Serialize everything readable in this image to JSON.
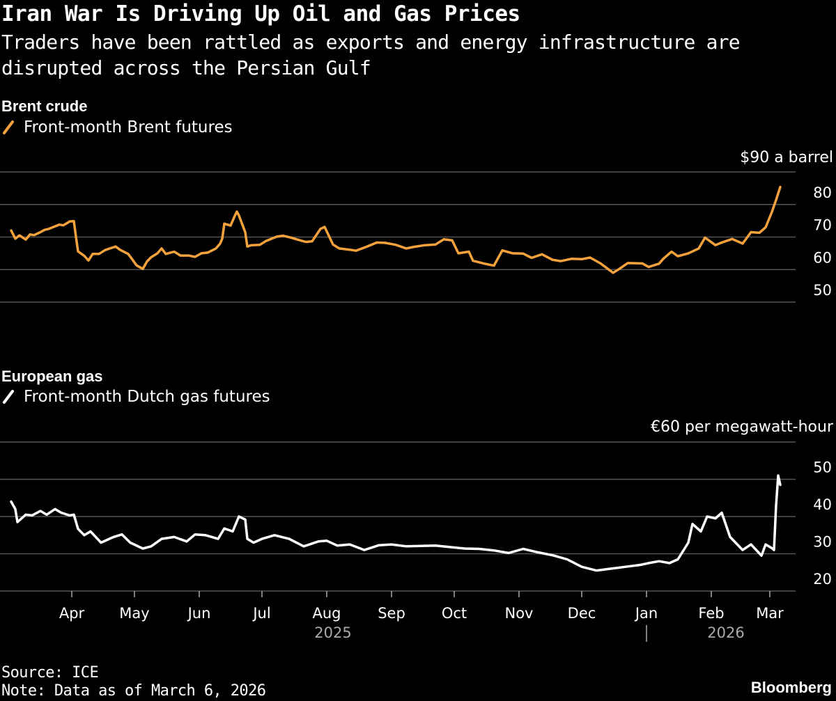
{
  "title": "Iran War Is Driving Up Oil and Gas Prices",
  "subtitle": "Traders have been rattled as exports and energy infrastructure are disrupted across the Persian Gulf",
  "source": "Source: ICE",
  "note": "Note: Data as of March 6, 2026",
  "brand": "Bloomberg",
  "colors": {
    "background": "#000000",
    "brent": "#f5a23d",
    "gas": "#ffffff",
    "grid": "#555555"
  },
  "chart_data": [
    {
      "type": "line",
      "title": "Brent crude",
      "unit_label": "$90 a barrel",
      "legend": "Front-month Brent futures",
      "ylim": [
        50,
        90
      ],
      "yticks": [
        "50",
        "60",
        "70",
        "80"
      ],
      "x_ticks": [
        "Apr",
        "May",
        "Jun",
        "Jul",
        "Aug",
        "Sep",
        "Oct",
        "Nov",
        "Dec",
        "Jan",
        "Feb",
        "Mar"
      ],
      "year_labels": [
        "2025",
        "2026"
      ],
      "series": [
        {
          "name": "Front-month Brent futures",
          "x": [
            "2025-03-03",
            "2025-03-05",
            "2025-03-07",
            "2025-03-10",
            "2025-03-12",
            "2025-03-14",
            "2025-03-17",
            "2025-03-19",
            "2025-03-21",
            "2025-03-24",
            "2025-03-26",
            "2025-03-28",
            "2025-03-31",
            "2025-04-02",
            "2025-04-03",
            "2025-04-04",
            "2025-04-07",
            "2025-04-09",
            "2025-04-11",
            "2025-04-14",
            "2025-04-17",
            "2025-04-22",
            "2025-04-24",
            "2025-04-28",
            "2025-04-30",
            "2025-05-02",
            "2025-05-05",
            "2025-05-07",
            "2025-05-09",
            "2025-05-12",
            "2025-05-14",
            "2025-05-16",
            "2025-05-20",
            "2025-05-23",
            "2025-05-27",
            "2025-05-30",
            "2025-06-02",
            "2025-06-05",
            "2025-06-09",
            "2025-06-11",
            "2025-06-12",
            "2025-06-13",
            "2025-06-16",
            "2025-06-18",
            "2025-06-19",
            "2025-06-20",
            "2025-06-23",
            "2025-06-24",
            "2025-06-26",
            "2025-06-30",
            "2025-07-03",
            "2025-07-08",
            "2025-07-11",
            "2025-07-15",
            "2025-07-18",
            "2025-07-22",
            "2025-07-25",
            "2025-07-29",
            "2025-07-31",
            "2025-08-04",
            "2025-08-07",
            "2025-08-12",
            "2025-08-15",
            "2025-08-20",
            "2025-08-25",
            "2025-08-29",
            "2025-09-03",
            "2025-09-08",
            "2025-09-12",
            "2025-09-17",
            "2025-09-22",
            "2025-09-26",
            "2025-09-30",
            "2025-10-03",
            "2025-10-08",
            "2025-10-10",
            "2025-10-15",
            "2025-10-20",
            "2025-10-24",
            "2025-10-29",
            "2025-11-03",
            "2025-11-07",
            "2025-11-12",
            "2025-11-17",
            "2025-11-21",
            "2025-11-26",
            "2025-12-01",
            "2025-12-05",
            "2025-12-10",
            "2025-12-16",
            "2025-12-19",
            "2025-12-23",
            "2025-12-30",
            "2026-01-02",
            "2026-01-07",
            "2026-01-09",
            "2026-01-13",
            "2026-01-16",
            "2026-01-21",
            "2026-01-26",
            "2026-01-29",
            "2026-02-03",
            "2026-02-06",
            "2026-02-11",
            "2026-02-16",
            "2026-02-20",
            "2026-02-24",
            "2026-02-27",
            "2026-03-02",
            "2026-03-04",
            "2026-03-06"
          ],
          "y": [
            72.0,
            69.5,
            70.5,
            69.2,
            70.8,
            70.6,
            71.5,
            72.2,
            72.5,
            73.3,
            73.8,
            73.6,
            74.8,
            74.9,
            70.1,
            65.6,
            64.2,
            62.8,
            64.8,
            64.8,
            66.0,
            67.1,
            66.1,
            64.8,
            63.1,
            61.3,
            60.2,
            62.5,
            63.8,
            65.0,
            66.5,
            64.8,
            65.5,
            64.3,
            64.3,
            63.9,
            65.0,
            65.2,
            66.5,
            68.0,
            69.5,
            74.1,
            73.5,
            76.5,
            77.8,
            76.6,
            71.5,
            67.1,
            67.5,
            67.6,
            68.8,
            70.1,
            70.4,
            69.8,
            69.2,
            68.5,
            68.7,
            72.5,
            73.1,
            67.7,
            66.5,
            66.1,
            65.8,
            67.0,
            68.3,
            68.2,
            67.6,
            66.5,
            67.0,
            67.5,
            67.7,
            69.3,
            69.0,
            65.0,
            65.5,
            62.7,
            61.9,
            61.2,
            65.9,
            65.0,
            64.9,
            63.6,
            64.7,
            63.0,
            62.6,
            63.3,
            63.2,
            63.7,
            61.9,
            59.0,
            60.2,
            62.0,
            61.9,
            60.8,
            61.8,
            63.3,
            65.5,
            64.1,
            65.0,
            66.5,
            69.8,
            67.5,
            68.3,
            69.4,
            68.0,
            71.5,
            71.3,
            73.0,
            77.7,
            81.4,
            85.4
          ]
        }
      ]
    },
    {
      "type": "line",
      "title": "European gas",
      "unit_label": "€60 per megawatt-hour",
      "legend": "Front-month Dutch gas futures",
      "ylim": [
        20,
        60
      ],
      "yticks": [
        "20",
        "30",
        "40",
        "50"
      ],
      "x_ticks": [
        "Apr",
        "May",
        "Jun",
        "Jul",
        "Aug",
        "Sep",
        "Oct",
        "Nov",
        "Dec",
        "Jan",
        "Feb",
        "Mar"
      ],
      "year_labels": [
        "2025",
        "2026"
      ],
      "series": [
        {
          "name": "Front-month Dutch gas futures",
          "x": [
            "2025-03-03",
            "2025-03-05",
            "2025-03-06",
            "2025-03-10",
            "2025-03-13",
            "2025-03-17",
            "2025-03-20",
            "2025-03-24",
            "2025-03-27",
            "2025-03-31",
            "2025-04-02",
            "2025-04-04",
            "2025-04-07",
            "2025-04-10",
            "2025-04-15",
            "2025-04-21",
            "2025-04-25",
            "2025-04-29",
            "2025-05-05",
            "2025-05-09",
            "2025-05-14",
            "2025-05-20",
            "2025-05-26",
            "2025-05-30",
            "2025-06-04",
            "2025-06-10",
            "2025-06-13",
            "2025-06-17",
            "2025-06-19",
            "2025-06-20",
            "2025-06-23",
            "2025-06-24",
            "2025-06-27",
            "2025-07-01",
            "2025-07-07",
            "2025-07-14",
            "2025-07-21",
            "2025-07-28",
            "2025-08-01",
            "2025-08-06",
            "2025-08-12",
            "2025-08-19",
            "2025-08-26",
            "2025-09-01",
            "2025-09-08",
            "2025-09-15",
            "2025-09-22",
            "2025-09-29",
            "2025-10-06",
            "2025-10-13",
            "2025-10-20",
            "2025-10-27",
            "2025-11-03",
            "2025-11-10",
            "2025-11-17",
            "2025-11-24",
            "2025-12-01",
            "2025-12-08",
            "2025-12-15",
            "2025-12-22",
            "2025-12-29",
            "2026-01-02",
            "2026-01-07",
            "2026-01-12",
            "2026-01-16",
            "2026-01-21",
            "2026-01-23",
            "2026-01-27",
            "2026-01-30",
            "2026-02-03",
            "2026-02-06",
            "2026-02-10",
            "2026-02-16",
            "2026-02-20",
            "2026-02-25",
            "2026-02-27",
            "2026-03-02",
            "2026-03-03",
            "2026-03-04",
            "2026-03-05",
            "2026-03-06"
          ],
          "y": [
            44.0,
            42.0,
            38.5,
            40.5,
            40.3,
            41.5,
            40.5,
            42.0,
            41.0,
            40.3,
            40.5,
            36.7,
            35.0,
            36.0,
            33.0,
            34.5,
            35.2,
            33.0,
            31.4,
            32.0,
            34.0,
            34.5,
            33.3,
            35.2,
            35.0,
            34.0,
            36.8,
            36.0,
            38.7,
            40.0,
            39.2,
            34.0,
            33.0,
            34.0,
            35.0,
            34.0,
            32.0,
            33.3,
            33.5,
            32.2,
            32.5,
            31.0,
            32.3,
            32.5,
            32.0,
            32.1,
            32.2,
            31.8,
            31.4,
            31.3,
            30.9,
            30.2,
            31.3,
            30.4,
            29.6,
            28.5,
            26.5,
            25.5,
            26.0,
            26.5,
            27.0,
            27.5,
            28.0,
            27.5,
            28.5,
            33.0,
            38.0,
            36.0,
            40.0,
            39.5,
            41.0,
            34.5,
            31.0,
            32.5,
            29.5,
            32.5,
            31.5,
            31.0,
            43.0,
            51.0,
            48.5
          ]
        }
      ]
    }
  ]
}
